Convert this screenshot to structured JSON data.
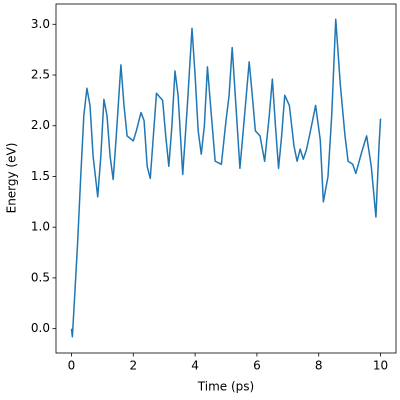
{
  "chart_data": {
    "type": "line",
    "xlabel": "Time (ps)",
    "ylabel": "Energy (eV)",
    "xlim": [
      -0.5,
      10.5
    ],
    "ylim": [
      -0.24,
      3.2
    ],
    "xticks": [
      0,
      2,
      4,
      6,
      8,
      10
    ],
    "yticks": [
      {
        "value": 0,
        "label": "0.0"
      },
      0.5,
      {
        "value": 1,
        "label": "1.0"
      },
      1.5,
      {
        "value": 2,
        "label": "2.0"
      },
      2.5,
      {
        "value": 3,
        "label": "3.0"
      }
    ],
    "grid": false,
    "series": [
      {
        "color": "#1f77b4",
        "x": [
          0,
          0.03,
          0.1,
          0.2,
          0.3,
          0.4,
          0.5,
          0.6,
          0.7,
          0.85,
          0.95,
          1.05,
          1.15,
          1.25,
          1.35,
          1.45,
          1.6,
          1.7,
          1.8,
          2.0,
          2.1,
          2.25,
          2.35,
          2.45,
          2.55,
          2.65,
          2.75,
          2.95,
          3.05,
          3.15,
          3.25,
          3.35,
          3.45,
          3.6,
          3.75,
          3.9,
          4.0,
          4.1,
          4.2,
          4.3,
          4.4,
          4.5,
          4.65,
          4.85,
          5.0,
          5.1,
          5.2,
          5.3,
          5.45,
          5.6,
          5.75,
          5.85,
          5.95,
          6.1,
          6.25,
          6.4,
          6.5,
          6.6,
          6.7,
          6.8,
          6.9,
          7.05,
          7.2,
          7.3,
          7.4,
          7.5,
          7.6,
          7.7,
          7.9,
          8.05,
          8.15,
          8.3,
          8.42,
          8.55,
          8.7,
          8.85,
          8.95,
          9.1,
          9.2,
          9.4,
          9.55,
          9.7,
          9.85,
          9.95,
          10.0
        ],
        "values": [
          0,
          -0.08,
          0.3,
          0.85,
          1.5,
          2.1,
          2.37,
          2.2,
          1.7,
          1.3,
          1.7,
          2.26,
          2.1,
          1.7,
          1.47,
          1.9,
          2.6,
          2.2,
          1.9,
          1.85,
          1.95,
          2.13,
          2.05,
          1.6,
          1.48,
          1.9,
          2.32,
          2.25,
          1.9,
          1.6,
          2.0,
          2.54,
          2.3,
          1.52,
          2.2,
          2.96,
          2.5,
          1.95,
          1.72,
          2.0,
          2.58,
          2.2,
          1.65,
          1.62,
          2.05,
          2.3,
          2.77,
          2.3,
          1.58,
          2.1,
          2.63,
          2.3,
          1.95,
          1.9,
          1.65,
          2.1,
          2.46,
          2.0,
          1.58,
          1.9,
          2.3,
          2.2,
          1.8,
          1.65,
          1.77,
          1.67,
          1.76,
          1.9,
          2.2,
          1.86,
          1.25,
          1.5,
          2.1,
          3.05,
          2.4,
          1.9,
          1.65,
          1.62,
          1.53,
          1.75,
          1.9,
          1.6,
          1.1,
          1.8,
          2.07
        ]
      }
    ]
  }
}
